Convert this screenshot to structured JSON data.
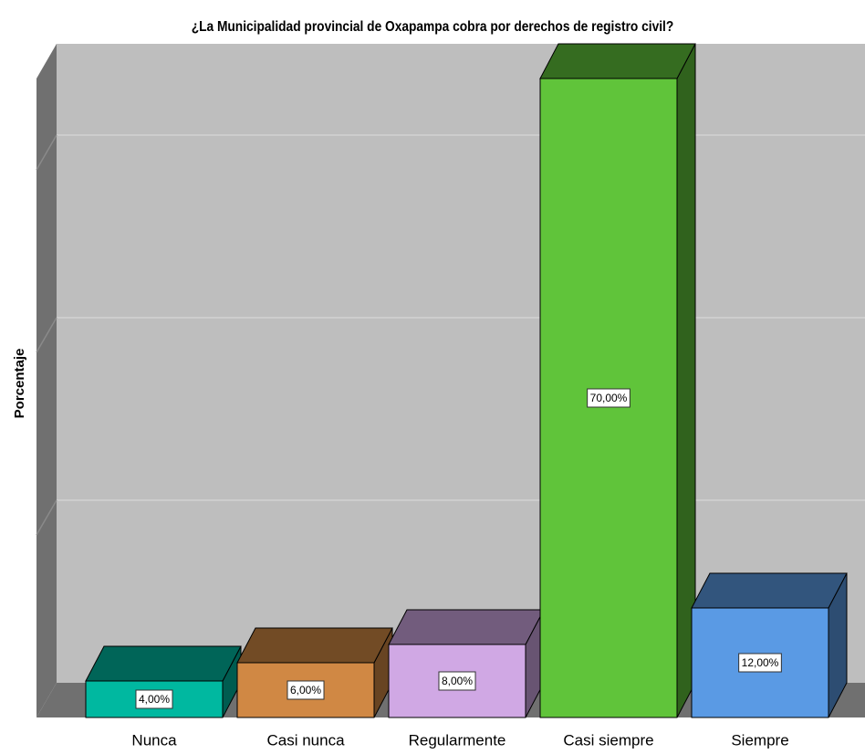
{
  "chart_data": {
    "type": "bar3d",
    "title": "¿La Municipalidad provincial de Oxapampa cobra por derechos de registro civil?",
    "y_label": "Porcentaje",
    "categories": [
      "Nunca",
      "Casi nunca",
      "Regularmente",
      "Casi siempre",
      "Siempre"
    ],
    "values": [
      4,
      6,
      8,
      70,
      12
    ],
    "value_labels": [
      "4,00%",
      "6,00%",
      "8,00%",
      "70,00%",
      "12,00%"
    ],
    "colors": [
      "#00b8a0",
      "#d08844",
      "#d0a8e4",
      "#60c43a",
      "#5a9ae4"
    ],
    "ylim": [
      0,
      70
    ],
    "yticks": [
      0,
      20,
      40,
      60
    ],
    "grid": true
  }
}
